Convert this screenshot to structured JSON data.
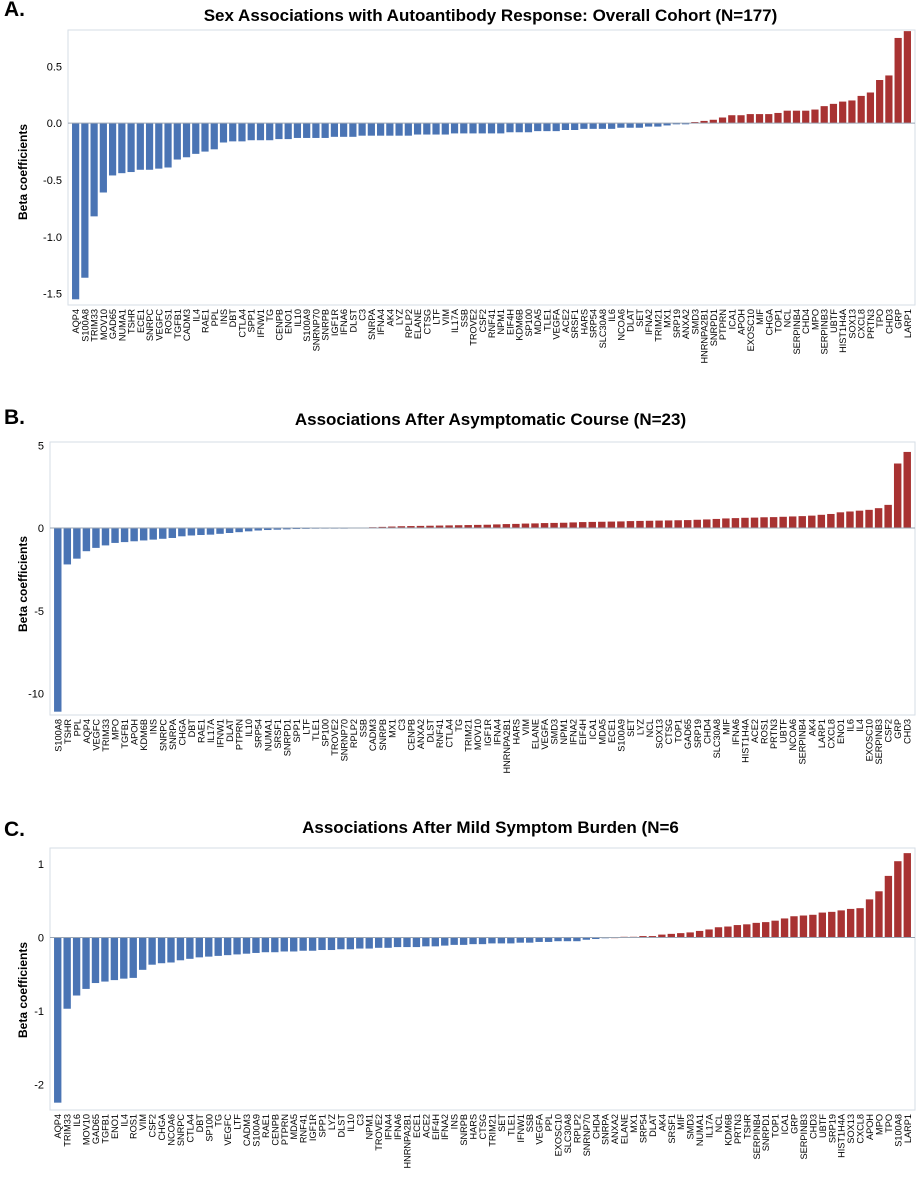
{
  "colors": {
    "positive": "#a83232",
    "negative": "#4a74b4",
    "axis": "#d6dde6"
  },
  "chart_data": [
    {
      "panel_label": "A.",
      "type": "bar",
      "title": "Sex Associations with Autoantibody Response: Overall Cohort (N=177)",
      "ylabel": "Beta coefficients",
      "xlabel": "",
      "ylim": [
        -1.6,
        0.82
      ],
      "yticks": [
        -1.5,
        -1.0,
        -0.5,
        0.0,
        0.5
      ],
      "ytick_labels": [
        "-1.5",
        "-1.0",
        "-0.5",
        "0.0",
        "0.5"
      ],
      "categories": [
        "AQP4",
        "S100A8",
        "TRIM33",
        "MOV10",
        "GAD65",
        "NUMA1",
        "TSHR",
        "ECE1",
        "SNRPC",
        "VEGFC",
        "ROS1",
        "TGFB1",
        "CADM3",
        "IL4",
        "RAE1",
        "PPL",
        "INS",
        "DBT",
        "CTLA4",
        "SPP1",
        "IFNW1",
        "TG",
        "CENPB",
        "ENO1",
        "IL10",
        "S100A9",
        "SNRNP70",
        "SNRPB",
        "IGF1R",
        "IFNA6",
        "DLST",
        "C3",
        "SNRPA",
        "IFNA4",
        "AK4",
        "LYZ",
        "RPLP2",
        "ELANE",
        "CTSG",
        "LTF",
        "VIM",
        "IL17A",
        "SSB",
        "TROVE2",
        "CSF2",
        "RNF41",
        "NPM1",
        "EIF4H",
        "KDM6B",
        "SP100",
        "MDA5",
        "TLE1",
        "VEGFA",
        "ACE2",
        "SRSF1",
        "HARS",
        "SRP54",
        "SLC30A8",
        "IL6",
        "NCOA6",
        "DLAT",
        "SET",
        "IFNA2",
        "TRIM21",
        "MX1",
        "SRP19",
        "ANXA2",
        "SMD3",
        "HNRNPA2B1",
        "SNRPD1",
        "PTPRN",
        "ICA1",
        "APOH",
        "EXOSC10",
        "MIF",
        "CHGA",
        "TOP1",
        "NCL",
        "SERPINB4",
        "CHD4",
        "MPO",
        "SERPINB3",
        "UBTF",
        "HIST1H4A",
        "SOX13",
        "CXCL8",
        "PRTN3",
        "TPO",
        "CHD3",
        "GRP",
        "LARP1"
      ],
      "values": [
        -1.55,
        -1.36,
        -0.82,
        -0.61,
        -0.46,
        -0.44,
        -0.43,
        -0.41,
        -0.41,
        -0.4,
        -0.39,
        -0.32,
        -0.3,
        -0.27,
        -0.25,
        -0.23,
        -0.17,
        -0.16,
        -0.16,
        -0.15,
        -0.15,
        -0.15,
        -0.14,
        -0.14,
        -0.13,
        -0.13,
        -0.13,
        -0.13,
        -0.12,
        -0.12,
        -0.12,
        -0.11,
        -0.11,
        -0.11,
        -0.11,
        -0.11,
        -0.11,
        -0.1,
        -0.1,
        -0.1,
        -0.1,
        -0.09,
        -0.09,
        -0.09,
        -0.09,
        -0.09,
        -0.09,
        -0.08,
        -0.08,
        -0.08,
        -0.07,
        -0.07,
        -0.07,
        -0.06,
        -0.06,
        -0.05,
        -0.05,
        -0.05,
        -0.05,
        -0.04,
        -0.04,
        -0.04,
        -0.03,
        -0.03,
        -0.02,
        -0.01,
        -0.01,
        0.01,
        0.02,
        0.03,
        0.05,
        0.07,
        0.07,
        0.08,
        0.08,
        0.08,
        0.09,
        0.11,
        0.11,
        0.11,
        0.12,
        0.15,
        0.17,
        0.19,
        0.2,
        0.24,
        0.27,
        0.38,
        0.42,
        0.75,
        0.81
      ]
    },
    {
      "panel_label": "B.",
      "type": "bar",
      "title": "Associations After Asymptomatic Course (N=23)",
      "ylabel": "Beta coefficients",
      "xlabel": "",
      "ylim": [
        -11.3,
        5.2
      ],
      "yticks": [
        -10,
        -5,
        0,
        5
      ],
      "ytick_labels": [
        "-10",
        "-5",
        "0",
        "5"
      ],
      "categories": [
        "S100A8",
        "TSHR",
        "PPL",
        "AQP4",
        "VEGFC",
        "TRIM33",
        "MPO",
        "TGFB1",
        "APOH",
        "KDM6B",
        "INS",
        "SNRPC",
        "SNRPA",
        "CHGA",
        "DBT",
        "RAE1",
        "IL17A",
        "IFNW1",
        "DLAT",
        "PTPRN",
        "IL10",
        "SRP54",
        "NUMA1",
        "SRSF1",
        "SNRPD1",
        "SPP1",
        "LTF",
        "TLE1",
        "SP100",
        "TROVE2",
        "SNRNP70",
        "RPLP2",
        "SSB",
        "CADM3",
        "SNRPB",
        "MX1",
        "C3",
        "CENPB",
        "ANXA2",
        "DLST",
        "RNF41",
        "CTLA4",
        "TG",
        "TRIM21",
        "MOV10",
        "IGF1R",
        "IFNA4",
        "HNRNPA2B1",
        "HARS",
        "VIM",
        "ELANE",
        "VEGFA",
        "SMD3",
        "NPM1",
        "IFNA2",
        "EIF4H",
        "ICA1",
        "MDA5",
        "ECE1",
        "S100A9",
        "SET",
        "LYZ",
        "NCL",
        "SOX13",
        "CTSG",
        "TOP1",
        "GAD65",
        "SRP19",
        "CHD4",
        "SLC30A8",
        "MIF",
        "IFNA6",
        "HIST1H4A",
        "ACE2",
        "ROS1",
        "PRTN3",
        "UBTF",
        "NCOA6",
        "SERPINB4",
        "AK4",
        "LARP1",
        "CXCL8",
        "ENO1",
        "IL6",
        "IL4",
        "EXOSC10",
        "SERPINB3",
        "CSF2",
        "GRP",
        "CHD3"
      ],
      "values": [
        -11.1,
        -2.2,
        -1.85,
        -1.4,
        -1.2,
        -1.05,
        -0.9,
        -0.85,
        -0.8,
        -0.75,
        -0.7,
        -0.65,
        -0.6,
        -0.5,
        -0.45,
        -0.42,
        -0.4,
        -0.35,
        -0.3,
        -0.25,
        -0.2,
        -0.15,
        -0.12,
        -0.1,
        -0.08,
        -0.06,
        -0.05,
        -0.04,
        -0.03,
        -0.02,
        -0.01,
        0.01,
        0.03,
        0.05,
        0.07,
        0.09,
        0.11,
        0.12,
        0.13,
        0.14,
        0.15,
        0.16,
        0.17,
        0.18,
        0.19,
        0.2,
        0.22,
        0.24,
        0.25,
        0.27,
        0.28,
        0.3,
        0.31,
        0.32,
        0.34,
        0.36,
        0.37,
        0.38,
        0.39,
        0.4,
        0.42,
        0.43,
        0.44,
        0.45,
        0.46,
        0.47,
        0.48,
        0.5,
        0.52,
        0.55,
        0.58,
        0.6,
        0.62,
        0.63,
        0.65,
        0.66,
        0.68,
        0.7,
        0.72,
        0.75,
        0.8,
        0.85,
        0.95,
        1.0,
        1.05,
        1.1,
        1.2,
        1.4,
        3.9,
        4.6
      ]
    },
    {
      "panel_label": "C.",
      "type": "bar",
      "title": "Associations After Mild Symptom Burden (N=6",
      "ylabel": "Beta coefficients",
      "xlabel": "",
      "ylim": [
        -2.35,
        1.22
      ],
      "yticks": [
        -2,
        -1,
        0,
        1
      ],
      "ytick_labels": [
        "-2",
        "-1",
        "0",
        "1"
      ],
      "categories": [
        "AQP4",
        "TRIM33",
        "IL6",
        "MOV10",
        "GAD65",
        "TGFB1",
        "ENO1",
        "IL4",
        "ROS1",
        "VIM",
        "CSF2",
        "CHGA",
        "NCOA6",
        "SNRPC",
        "CTLA4",
        "DBT",
        "SP100",
        "TG",
        "VEGFC",
        "LTF",
        "CADM3",
        "S100A9",
        "RAE1",
        "CENPB",
        "PTPRN",
        "MDA5",
        "RNF41",
        "IGF1R",
        "SPP1",
        "LYZ",
        "DLST",
        "IL10",
        "C3",
        "NPM1",
        "TROVE2",
        "IFNA4",
        "IFNA6",
        "HNRNPA2B1",
        "ECE1",
        "ACE2",
        "EIF4H",
        "IFNA2",
        "INS",
        "SNRPB",
        "HARS",
        "CTSG",
        "TRIM21",
        "SET",
        "TLE1",
        "IFNW1",
        "SSB",
        "VEGFA",
        "PPL",
        "EXOSC10",
        "SLC30A8",
        "RPLP2",
        "SNRNP70",
        "CHD4",
        "SNRPA",
        "ANXA2",
        "ELANE",
        "MX1",
        "SRP54",
        "DLAT",
        "AK4",
        "SRSF1",
        "MIF",
        "SMD3",
        "NUMA1",
        "IL17A",
        "NCL",
        "KDM6B",
        "PRTN3",
        "TSHR",
        "SERPINB4",
        "SNRPD1",
        "TOP1",
        "ICA1",
        "GRP",
        "SERPINB3",
        "CHD3",
        "UBTF",
        "SRP19",
        "HIST1H4A",
        "SOX13",
        "CXCL8",
        "APOH",
        "MPO",
        "TPO",
        "S100A8",
        "LARP1"
      ],
      "values": [
        -2.25,
        -0.97,
        -0.79,
        -0.7,
        -0.62,
        -0.6,
        -0.58,
        -0.56,
        -0.55,
        -0.44,
        -0.37,
        -0.35,
        -0.34,
        -0.31,
        -0.29,
        -0.27,
        -0.26,
        -0.25,
        -0.24,
        -0.23,
        -0.22,
        -0.21,
        -0.2,
        -0.2,
        -0.19,
        -0.19,
        -0.18,
        -0.18,
        -0.17,
        -0.17,
        -0.16,
        -0.16,
        -0.15,
        -0.15,
        -0.14,
        -0.14,
        -0.13,
        -0.13,
        -0.13,
        -0.12,
        -0.12,
        -0.11,
        -0.1,
        -0.1,
        -0.09,
        -0.09,
        -0.08,
        -0.08,
        -0.08,
        -0.07,
        -0.07,
        -0.06,
        -0.06,
        -0.05,
        -0.05,
        -0.05,
        -0.03,
        -0.02,
        -0.01,
        0.0,
        0.01,
        0.01,
        0.02,
        0.02,
        0.04,
        0.05,
        0.06,
        0.07,
        0.09,
        0.11,
        0.14,
        0.15,
        0.17,
        0.18,
        0.2,
        0.21,
        0.23,
        0.26,
        0.29,
        0.3,
        0.31,
        0.34,
        0.35,
        0.37,
        0.39,
        0.4,
        0.52,
        0.63,
        0.84,
        1.04,
        1.15
      ]
    }
  ]
}
